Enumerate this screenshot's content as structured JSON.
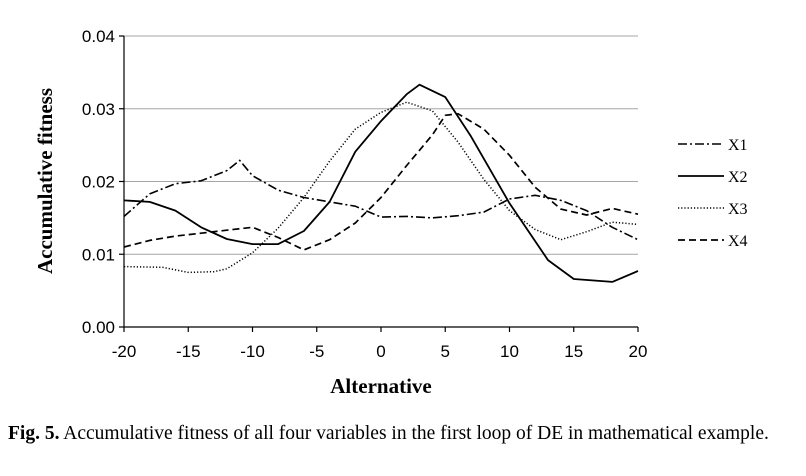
{
  "chart_data": {
    "type": "line",
    "title": "",
    "xlabel": "Alternative",
    "ylabel": "Accumulative fitness",
    "xlim": [
      -20,
      20
    ],
    "ylim": [
      0,
      0.04
    ],
    "x_ticks": [
      "-20",
      "-15",
      "-10",
      "-5",
      "0",
      "5",
      "10",
      "15",
      "20"
    ],
    "y_ticks": [
      "0.00",
      "0.01",
      "0.02",
      "0.03",
      "0.04"
    ],
    "grid": "horizontal",
    "legend_position": "right",
    "series": [
      {
        "name": "X1",
        "style": "dash-dot",
        "x": [
          -20,
          -18,
          -16,
          -14,
          -12,
          -11,
          -10,
          -8,
          -6,
          -4,
          -2,
          0,
          2,
          4,
          6,
          8,
          10,
          12,
          14,
          16,
          18,
          20
        ],
        "y": [
          0.0152,
          0.0183,
          0.0197,
          0.0201,
          0.0215,
          0.0229,
          0.0208,
          0.0188,
          0.0178,
          0.0172,
          0.0166,
          0.0151,
          0.0152,
          0.015,
          0.0153,
          0.0158,
          0.0176,
          0.0181,
          0.0174,
          0.016,
          0.0137,
          0.012
        ]
      },
      {
        "name": "X2",
        "style": "solid",
        "x": [
          -20,
          -18,
          -16,
          -14,
          -12,
          -10,
          -8,
          -6,
          -4,
          -2,
          0,
          2,
          3,
          5,
          7,
          10,
          13,
          15,
          18,
          20
        ],
        "y": [
          0.0174,
          0.0172,
          0.016,
          0.0137,
          0.0121,
          0.0114,
          0.0114,
          0.0132,
          0.0172,
          0.0241,
          0.0283,
          0.032,
          0.0333,
          0.0316,
          0.0262,
          0.017,
          0.0092,
          0.0066,
          0.0062,
          0.0077
        ]
      },
      {
        "name": "X3",
        "style": "dotted",
        "x": [
          -20,
          -17,
          -15,
          -13,
          -12,
          -10,
          -8,
          -6,
          -4,
          -2,
          0,
          2,
          4,
          6,
          8,
          10,
          12,
          14,
          16,
          18,
          20
        ],
        "y": [
          0.0083,
          0.0082,
          0.0075,
          0.0076,
          0.008,
          0.0102,
          0.0136,
          0.0178,
          0.0228,
          0.0272,
          0.0295,
          0.0309,
          0.0297,
          0.0254,
          0.0203,
          0.016,
          0.0134,
          0.012,
          0.0131,
          0.0144,
          0.0141
        ]
      },
      {
        "name": "X4",
        "style": "dashed",
        "x": [
          -20,
          -18,
          -16,
          -14,
          -12,
          -10,
          -8,
          -6,
          -4,
          -2,
          0,
          2,
          4,
          5,
          6,
          8,
          10,
          12,
          14,
          16,
          18,
          20
        ],
        "y": [
          0.011,
          0.0119,
          0.0125,
          0.0129,
          0.0133,
          0.0137,
          0.0123,
          0.0106,
          0.012,
          0.0143,
          0.0178,
          0.0222,
          0.0264,
          0.0291,
          0.0293,
          0.0272,
          0.0236,
          0.0192,
          0.0162,
          0.0154,
          0.0163,
          0.0155
        ]
      }
    ]
  },
  "caption": {
    "label": "Fig. 5.",
    "text": "Accumulative fitness of all four variables in the first loop of DE in mathematical example."
  }
}
